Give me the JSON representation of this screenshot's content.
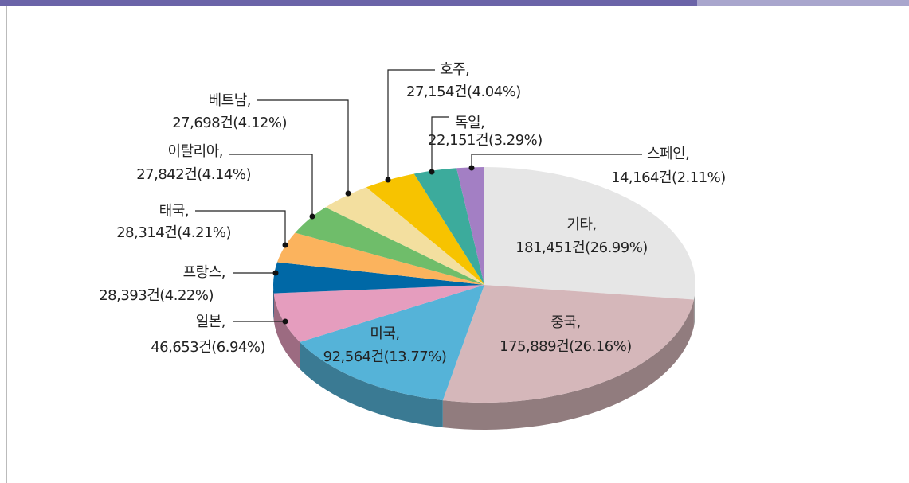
{
  "chart_data": {
    "type": "pie",
    "categories": [
      "기타,",
      "중국,",
      "미국,",
      "일본,",
      "프랑스,",
      "태국,",
      "이탈리아,",
      "베트남,",
      "호주,",
      "독일,",
      "스페인,"
    ],
    "values": [
      181451,
      175889,
      92564,
      46653,
      28393,
      28314,
      27842,
      27698,
      27154,
      22151,
      14164
    ],
    "value_labels": [
      "181,451건(26.99%)",
      "175,889건(26.16%)",
      "92,564건(13.77%)",
      "46,653건(6.94%)",
      "28,393건(4.22%)",
      "28,314건(4.21%)",
      "27,842건(4.14%)",
      "27,698건(4.12%)",
      "27,154건(4.04%)",
      "22,151건(3.29%)",
      "14,164건(2.11%)"
    ],
    "colors": [
      "#e6e6e6",
      "#d5b7ba",
      "#55b3d8",
      "#e59dbe",
      "#0068a6",
      "#fbb35d",
      "#6fbd6a",
      "#f3df9f",
      "#f7c300",
      "#3cab9c",
      "#a37fc4"
    ]
  }
}
